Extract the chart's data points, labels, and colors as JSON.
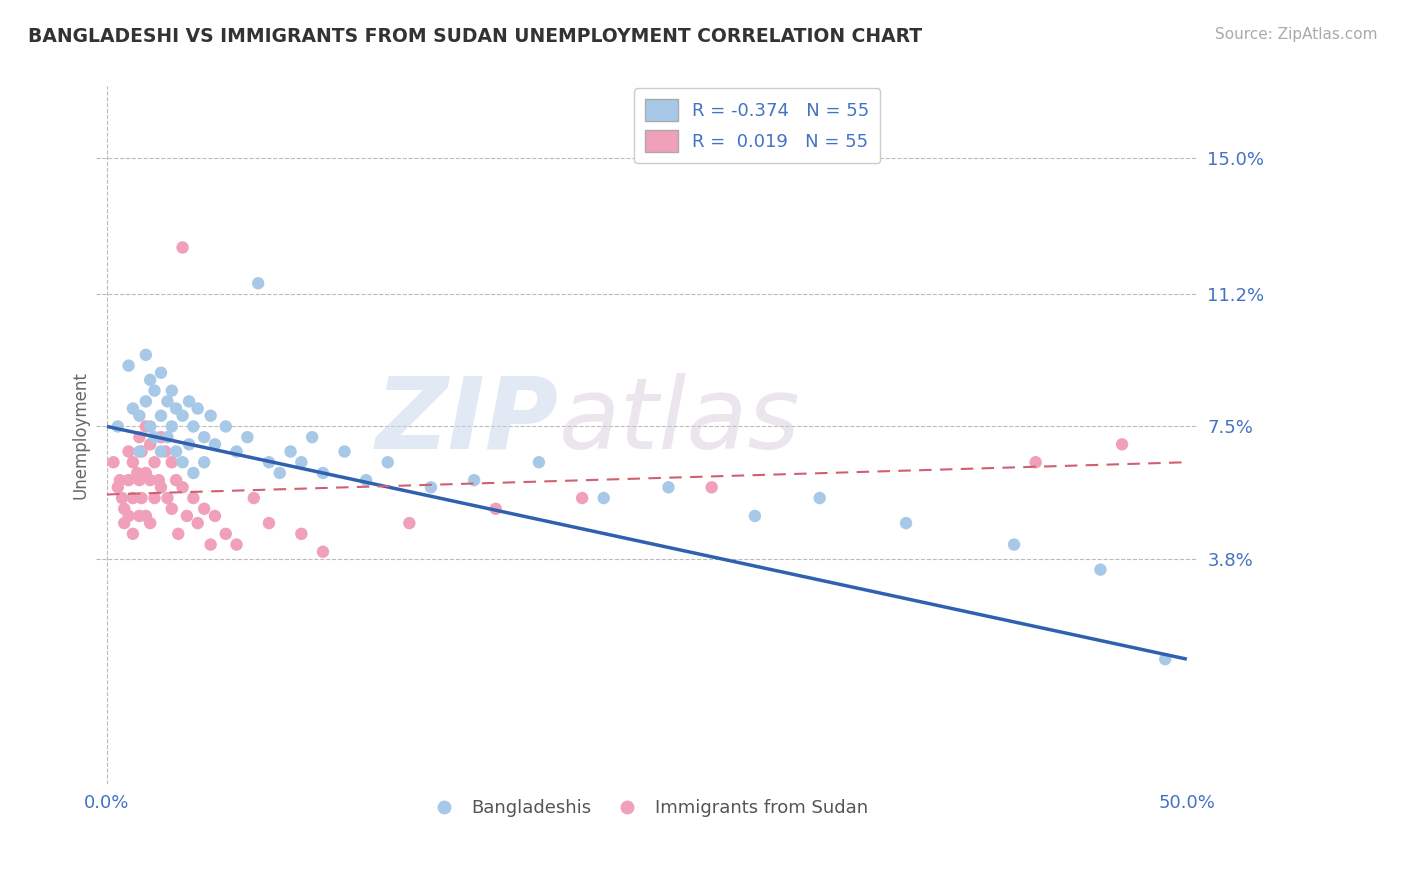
{
  "title": "BANGLADESHI VS IMMIGRANTS FROM SUDAN UNEMPLOYMENT CORRELATION CHART",
  "source": "Source: ZipAtlas.com",
  "ylabel": "Unemployment",
  "xlim": [
    -0.005,
    0.505
  ],
  "ylim": [
    -0.025,
    0.17
  ],
  "yticks": [
    0.038,
    0.075,
    0.112,
    0.15
  ],
  "ytick_labels": [
    "3.8%",
    "7.5%",
    "11.2%",
    "15.0%"
  ],
  "xticks": [
    0.0,
    0.5
  ],
  "xtick_labels": [
    "0.0%",
    "50.0%"
  ],
  "legend_r1": "R = -0.374",
  "legend_n1": "N = 55",
  "legend_r2": "R =  0.019",
  "legend_n2": "N = 55",
  "color_blue": "#a8c8e8",
  "color_pink": "#f0a0b8",
  "color_blue_dark": "#3060b0",
  "color_pink_dark": "#d06070",
  "color_text": "#4472c4",
  "watermark_zip": "ZIP",
  "watermark_atlas": "atlas",
  "bangladeshi_x": [
    0.005,
    0.01,
    0.012,
    0.015,
    0.015,
    0.018,
    0.018,
    0.02,
    0.02,
    0.022,
    0.022,
    0.025,
    0.025,
    0.025,
    0.028,
    0.028,
    0.03,
    0.03,
    0.032,
    0.032,
    0.035,
    0.035,
    0.038,
    0.038,
    0.04,
    0.04,
    0.042,
    0.045,
    0.045,
    0.048,
    0.05,
    0.055,
    0.06,
    0.065,
    0.07,
    0.075,
    0.08,
    0.085,
    0.09,
    0.095,
    0.1,
    0.11,
    0.12,
    0.13,
    0.15,
    0.17,
    0.2,
    0.23,
    0.26,
    0.3,
    0.33,
    0.37,
    0.42,
    0.46,
    0.49
  ],
  "bangladeshi_y": [
    0.075,
    0.092,
    0.08,
    0.078,
    0.068,
    0.095,
    0.082,
    0.088,
    0.075,
    0.085,
    0.072,
    0.09,
    0.078,
    0.068,
    0.082,
    0.072,
    0.085,
    0.075,
    0.08,
    0.068,
    0.078,
    0.065,
    0.082,
    0.07,
    0.075,
    0.062,
    0.08,
    0.072,
    0.065,
    0.078,
    0.07,
    0.075,
    0.068,
    0.072,
    0.115,
    0.065,
    0.062,
    0.068,
    0.065,
    0.072,
    0.062,
    0.068,
    0.06,
    0.065,
    0.058,
    0.06,
    0.065,
    0.055,
    0.058,
    0.05,
    0.055,
    0.048,
    0.042,
    0.035,
    0.01
  ],
  "sudan_x": [
    0.003,
    0.005,
    0.006,
    0.007,
    0.008,
    0.008,
    0.01,
    0.01,
    0.01,
    0.012,
    0.012,
    0.012,
    0.014,
    0.015,
    0.015,
    0.015,
    0.016,
    0.016,
    0.018,
    0.018,
    0.018,
    0.02,
    0.02,
    0.02,
    0.022,
    0.022,
    0.024,
    0.025,
    0.025,
    0.027,
    0.028,
    0.03,
    0.03,
    0.032,
    0.033,
    0.035,
    0.037,
    0.04,
    0.042,
    0.045,
    0.048,
    0.05,
    0.055,
    0.06,
    0.068,
    0.075,
    0.09,
    0.1,
    0.14,
    0.18,
    0.22,
    0.28,
    0.035,
    0.43,
    0.47
  ],
  "sudan_y": [
    0.065,
    0.058,
    0.06,
    0.055,
    0.052,
    0.048,
    0.068,
    0.06,
    0.05,
    0.065,
    0.055,
    0.045,
    0.062,
    0.072,
    0.06,
    0.05,
    0.068,
    0.055,
    0.075,
    0.062,
    0.05,
    0.07,
    0.06,
    0.048,
    0.065,
    0.055,
    0.06,
    0.072,
    0.058,
    0.068,
    0.055,
    0.065,
    0.052,
    0.06,
    0.045,
    0.058,
    0.05,
    0.055,
    0.048,
    0.052,
    0.042,
    0.05,
    0.045,
    0.042,
    0.055,
    0.048,
    0.045,
    0.04,
    0.048,
    0.052,
    0.055,
    0.058,
    0.125,
    0.065,
    0.07
  ],
  "bang_trend_x": [
    0.0,
    0.5
  ],
  "bang_trend_y": [
    0.075,
    0.01
  ],
  "sudan_trend_x": [
    0.0,
    0.5
  ],
  "sudan_trend_y": [
    0.056,
    0.065
  ]
}
